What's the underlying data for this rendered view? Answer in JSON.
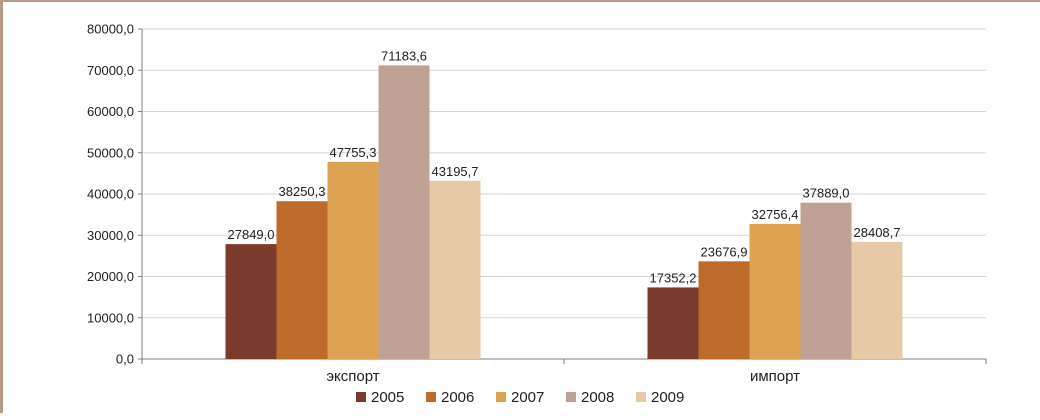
{
  "chart_data": {
    "type": "bar",
    "categories": [
      "экспорт",
      "импорт"
    ],
    "series": [
      {
        "name": "2005",
        "color": "#7b3b2c",
        "values": [
          27849.0,
          17352.2
        ],
        "labels": [
          "27849,0",
          "17352,2"
        ]
      },
      {
        "name": "2006",
        "color": "#bd6a2a",
        "values": [
          38250.3,
          23676.9
        ],
        "labels": [
          "38250,3",
          "23676,9"
        ]
      },
      {
        "name": "2007",
        "color": "#dea352",
        "values": [
          47755.3,
          32756.4
        ],
        "labels": [
          "47755,3",
          "32756,4"
        ]
      },
      {
        "name": "2008",
        "color": "#bfa195",
        "values": [
          71183.6,
          37889.0
        ],
        "labels": [
          "71183,6",
          "37889,0"
        ]
      },
      {
        "name": "2009",
        "color": "#e6c9a6",
        "values": [
          43195.7,
          28408.7
        ],
        "labels": [
          "43195,7",
          "28408,7"
        ]
      }
    ],
    "ylim": [
      0,
      80000
    ],
    "yticks": [
      0,
      10000,
      20000,
      30000,
      40000,
      50000,
      60000,
      70000,
      80000
    ],
    "ytick_labels": [
      "0,0",
      "10000,0",
      "20000,0",
      "30000,0",
      "40000,0",
      "50000,0",
      "60000,0",
      "70000,0",
      "80000,0"
    ],
    "grid": true,
    "legend_position": "bottom"
  }
}
